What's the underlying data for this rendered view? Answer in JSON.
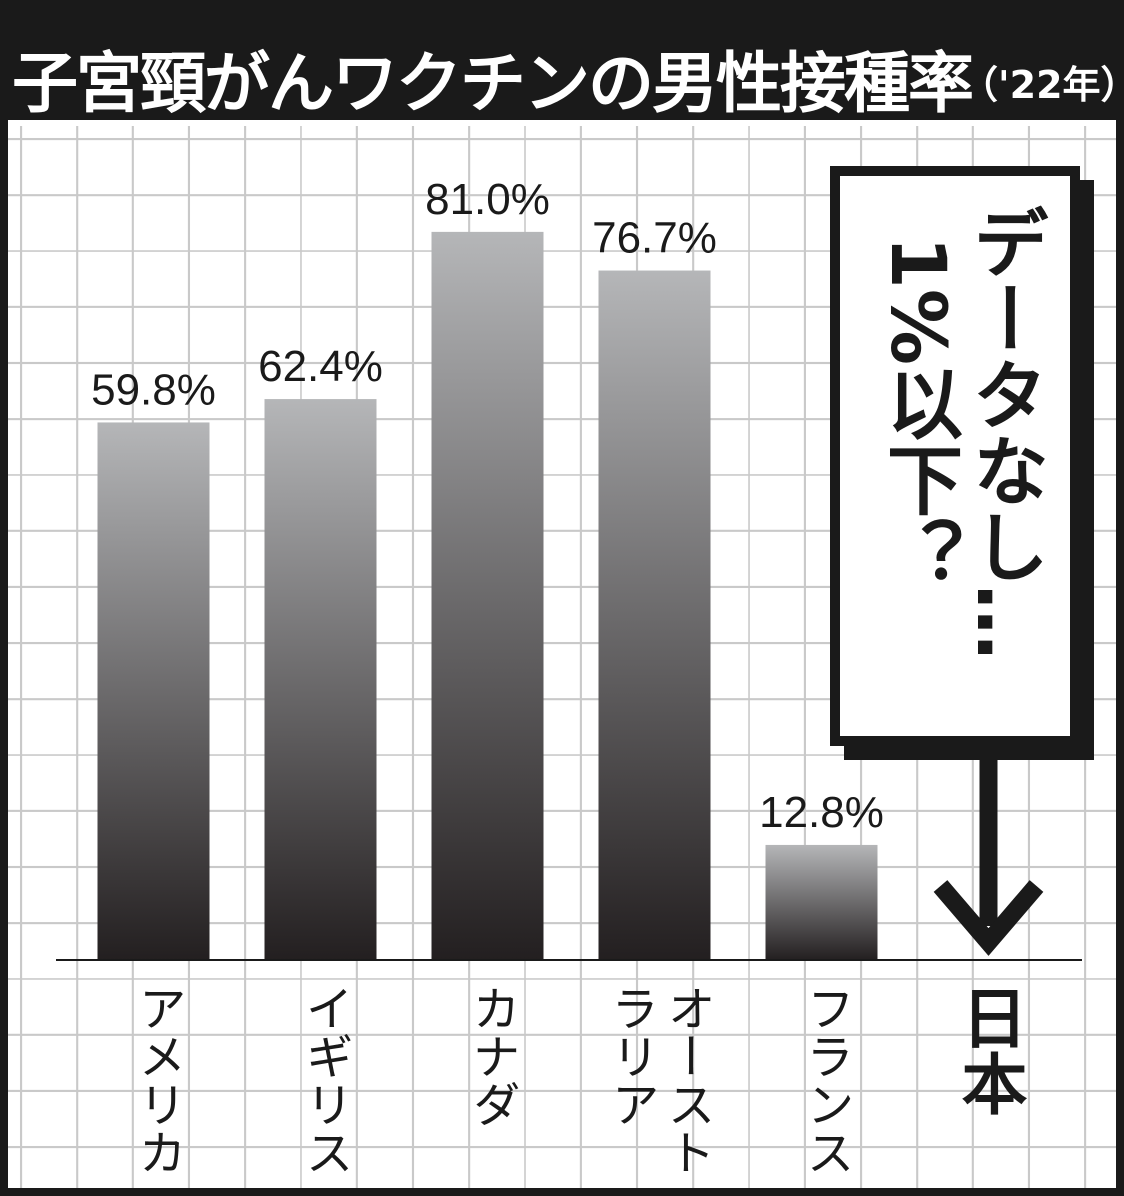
{
  "chart_data": {
    "type": "bar",
    "title": "子宮頸がんワクチンの男性接種率",
    "subtitle": "（'22年）",
    "categories": [
      "アメリカ",
      "イギリス",
      "カナダ",
      "オーストラリア",
      "フランス",
      "日本"
    ],
    "values": [
      59.8,
      62.4,
      81.0,
      76.7,
      12.8,
      null
    ],
    "value_labels": [
      "59.8%",
      "62.4%",
      "81.0%",
      "76.7%",
      "12.8%",
      null
    ],
    "gradient": [
      "#b5b6b8",
      "#231f20"
    ],
    "ylim": [
      0,
      92
    ],
    "annotation": [
      "データなし…",
      "1%以下？"
    ]
  }
}
